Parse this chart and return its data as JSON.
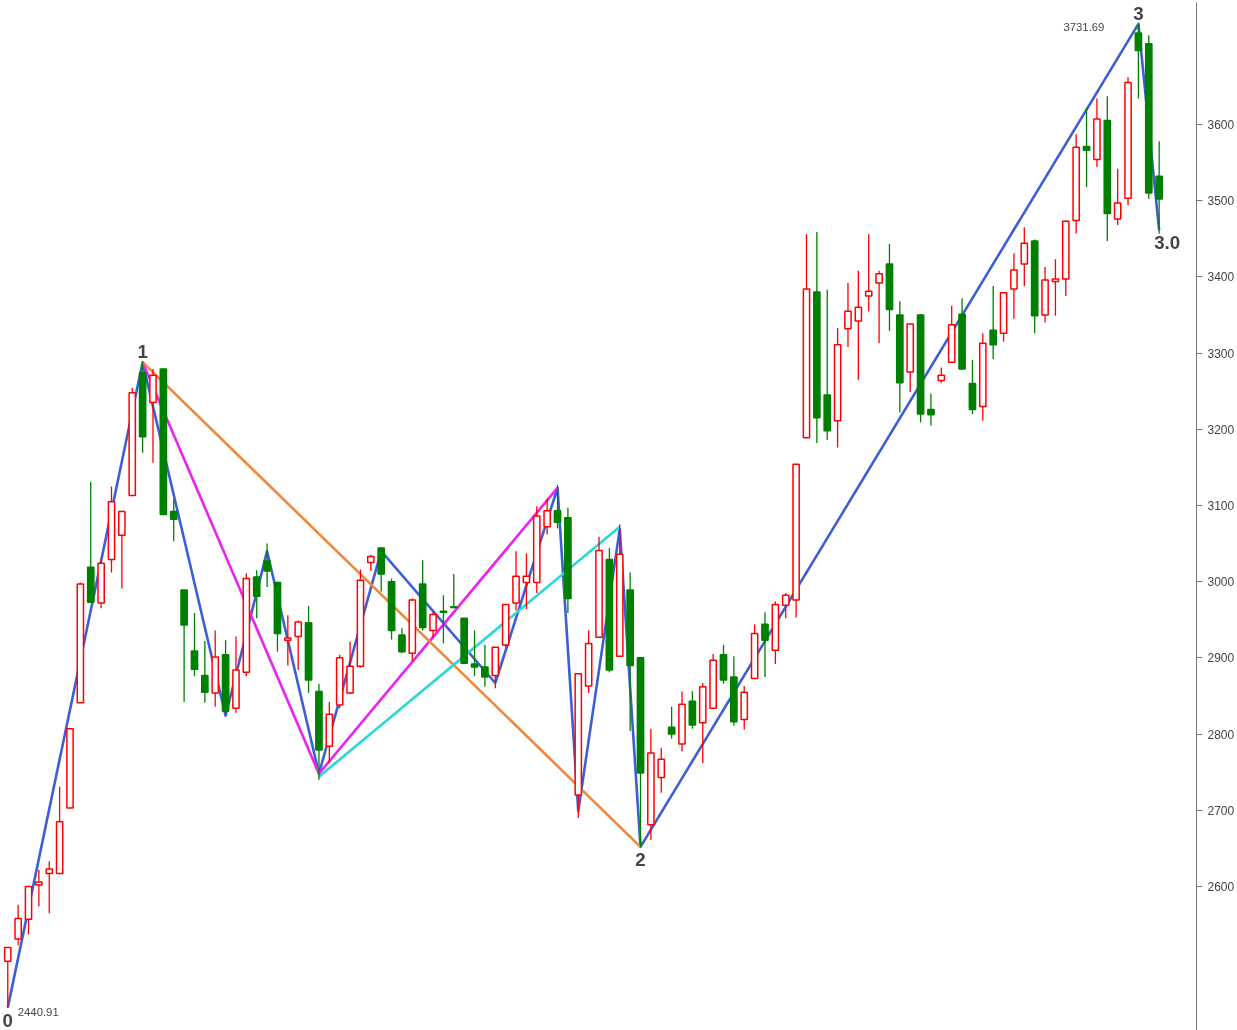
{
  "chart_data": {
    "type": "candlestick",
    "categories": [
      null,
      null,
      null,
      null,
      null,
      null,
      null,
      null,
      null,
      null,
      null,
      null,
      null,
      null,
      null,
      null,
      null,
      null,
      null,
      null,
      null,
      null,
      null,
      null,
      null,
      null,
      null,
      null,
      null,
      null,
      null,
      null,
      null,
      null,
      null,
      null,
      null,
      null,
      null,
      null,
      null,
      null,
      null,
      null,
      null,
      null,
      null,
      null,
      null,
      null,
      null,
      null,
      null,
      null,
      null,
      null,
      null,
      null,
      null,
      null,
      null,
      null,
      null,
      null,
      null,
      null,
      null,
      null,
      null,
      null,
      null,
      null,
      null,
      null,
      null,
      null,
      null,
      null,
      null,
      null,
      null,
      null,
      null,
      null,
      null,
      null,
      null,
      null,
      null,
      null,
      null,
      null,
      null,
      null,
      null,
      null,
      null,
      null,
      null,
      null,
      null,
      null,
      null,
      null,
      null,
      null,
      null,
      null,
      null,
      null,
      null,
      null
    ],
    "ohlc": [
      [
        2502,
        2520,
        2440.91,
        2520
      ],
      [
        2531,
        2576,
        2523,
        2558
      ],
      [
        2557,
        2600,
        2537,
        2600
      ],
      [
        2602,
        2622,
        2574,
        2606
      ],
      [
        2617,
        2633,
        2565,
        2623
      ],
      [
        2617,
        2731,
        2617,
        2685
      ],
      [
        2703,
        2807,
        2703,
        2807
      ],
      [
        2841,
        2999,
        2841,
        2997
      ],
      [
        3019,
        3131,
        2973,
        2973
      ],
      [
        2972,
        3028,
        2965,
        3024
      ],
      [
        3029,
        3125,
        3012,
        3105
      ],
      [
        3061,
        3093,
        2991,
        3092
      ],
      [
        3113,
        3254,
        3113,
        3248
      ],
      [
        3274,
        3288,
        3169,
        3190
      ],
      [
        3235,
        3279,
        3156,
        3271
      ],
      [
        3279,
        3280,
        3088,
        3088
      ],
      [
        3092,
        3108,
        3053,
        3082
      ],
      [
        2989,
        2989,
        2842,
        2943
      ],
      [
        2909,
        2959,
        2876,
        2885
      ],
      [
        2877,
        2922,
        2841,
        2855
      ],
      [
        2854,
        2936,
        2836,
        2901
      ],
      [
        2904,
        2923,
        2826,
        2830
      ],
      [
        2834,
        2928,
        2828,
        2884
      ],
      [
        2881,
        3011,
        2876,
        3004
      ],
      [
        3006,
        3015,
        2952,
        2981
      ],
      [
        3027,
        3050,
        2993,
        3014
      ],
      [
        2999,
        3000,
        2908,
        2932
      ],
      [
        2923,
        2956,
        2890,
        2926
      ],
      [
        2928,
        2949,
        2884,
        2947
      ],
      [
        2946,
        2968,
        2854,
        2871
      ],
      [
        2856,
        2866,
        2740,
        2779
      ],
      [
        2784,
        2842,
        2762,
        2826
      ],
      [
        2838,
        2904,
        2834,
        2900
      ],
      [
        2854,
        2921,
        2853,
        2889
      ],
      [
        2889,
        3016,
        2887,
        3002
      ],
      [
        3025,
        3035,
        3014,
        3033
      ],
      [
        3044,
        3045,
        2987,
        3010
      ],
      [
        3000,
        3004,
        2924,
        2936
      ],
      [
        2930,
        2939,
        2906,
        2908
      ],
      [
        2906,
        2978,
        2896,
        2976
      ],
      [
        2997,
        3028,
        2936,
        2940
      ],
      [
        2936,
        2961,
        2926,
        2957
      ],
      [
        2961,
        2982,
        2919,
        2960
      ],
      [
        2967,
        3010,
        2965,
        2966
      ],
      [
        2952,
        2952,
        2893,
        2893
      ],
      [
        2892,
        2936,
        2876,
        2888
      ],
      [
        2888,
        2917,
        2862,
        2875
      ],
      [
        2877,
        2914,
        2860,
        2914
      ],
      [
        2917,
        2970,
        2914,
        2970
      ],
      [
        2972,
        3040,
        2962,
        3007
      ],
      [
        2999,
        3037,
        2964,
        3007
      ],
      [
        2999,
        3099,
        2985,
        3086
      ],
      [
        3072,
        3109,
        3062,
        3093
      ],
      [
        3093,
        3127,
        3070,
        3078
      ],
      [
        3084,
        3097,
        2959,
        2978
      ],
      [
        2720,
        2879,
        2690,
        2879
      ],
      [
        2863,
        2936,
        2854,
        2919
      ],
      [
        2927,
        3059,
        2927,
        3041
      ],
      [
        3029,
        3044,
        2881,
        2884
      ],
      [
        2902,
        3075,
        2902,
        3036
      ],
      [
        2989,
        3012,
        2804,
        2890
      ],
      [
        2900,
        2900,
        2652,
        2749
      ],
      [
        2681,
        2807,
        2661,
        2775
      ],
      [
        2743,
        2782,
        2723,
        2767
      ],
      [
        2809,
        2836,
        2794,
        2800
      ],
      [
        2787,
        2856,
        2777,
        2839
      ],
      [
        2843,
        2856,
        2807,
        2812
      ],
      [
        2815,
        2867,
        2762,
        2862
      ],
      [
        2834,
        2905,
        2834,
        2897
      ],
      [
        2904,
        2917,
        2866,
        2871
      ],
      [
        2875,
        2902,
        2811,
        2816
      ],
      [
        2819,
        2863,
        2806,
        2855
      ],
      [
        2873,
        2944,
        2873,
        2932
      ],
      [
        2944,
        2960,
        2875,
        2923
      ],
      [
        2910,
        2974,
        2892,
        2970
      ],
      [
        2969,
        2985,
        2952,
        2982
      ],
      [
        2976,
        3154,
        2953,
        3154
      ],
      [
        3189,
        3456,
        3189,
        3384
      ],
      [
        3380,
        3459,
        3182,
        3215
      ],
      [
        3245,
        3383,
        3186,
        3198
      ],
      [
        3211,
        3333,
        3176,
        3311
      ],
      [
        3332,
        3392,
        3308,
        3355
      ],
      [
        3342,
        3408,
        3265,
        3360
      ],
      [
        3375,
        3456,
        3355,
        3381
      ],
      [
        3392,
        3408,
        3313,
        3404
      ],
      [
        3417,
        3443,
        3329,
        3357
      ],
      [
        3350,
        3368,
        3222,
        3261
      ],
      [
        3275,
        3338,
        3249,
        3338
      ],
      [
        3350,
        3351,
        3209,
        3220
      ],
      [
        3226,
        3247,
        3205,
        3219
      ],
      [
        3264,
        3281,
        3261,
        3271
      ],
      [
        3288,
        3362,
        3288,
        3337
      ],
      [
        3351,
        3372,
        3278,
        3279
      ],
      [
        3260,
        3291,
        3220,
        3226
      ],
      [
        3230,
        3326,
        3211,
        3313
      ],
      [
        3330,
        3388,
        3292,
        3311
      ],
      [
        3326,
        3379,
        3315,
        3379
      ],
      [
        3384,
        3431,
        3345,
        3409
      ],
      [
        3417,
        3465,
        3388,
        3444
      ],
      [
        3447,
        3449,
        3326,
        3349
      ],
      [
        3350,
        3413,
        3340,
        3396
      ],
      [
        3394,
        3423,
        3349,
        3397
      ],
      [
        3397,
        3474,
        3375,
        3473
      ],
      [
        3474,
        3587,
        3457,
        3570
      ],
      [
        3571,
        3622,
        3518,
        3566
      ],
      [
        3554,
        3634,
        3544,
        3607
      ],
      [
        3605,
        3637,
        3447,
        3483
      ],
      [
        3476,
        3542,
        3468,
        3497
      ],
      [
        3503,
        3662,
        3494,
        3655
      ],
      [
        3720,
        3731.69,
        3634,
        3697
      ],
      [
        3706,
        3717,
        3502,
        3510
      ],
      [
        3532,
        3578,
        3457,
        3502
      ]
    ],
    "colors": [
      "#ff0000",
      "#ff0000",
      "#ff0000",
      "#ff0000",
      "#ff0000",
      "#ff0000",
      "#ff0000",
      "#ff0000",
      "#008000",
      "#ff0000",
      "#ff0000",
      "#ff0000",
      "#ff0000",
      "#008000",
      "#ff0000",
      "#008000",
      "#008000",
      "#008000",
      "#008000",
      "#008000",
      "#ff0000",
      "#008000",
      "#ff0000",
      "#ff0000",
      "#008000",
      "#008000",
      "#008000",
      "#ff0000",
      "#ff0000",
      "#008000",
      "#008000",
      "#ff0000",
      "#ff0000",
      "#ff0000",
      "#ff0000",
      "#ff0000",
      "#008000",
      "#008000",
      "#008000",
      "#ff0000",
      "#008000",
      "#ff0000",
      "#008000",
      "#008000",
      "#008000",
      "#008000",
      "#008000",
      "#ff0000",
      "#ff0000",
      "#ff0000",
      "#ff0000",
      "#ff0000",
      "#ff0000",
      "#008000",
      "#008000",
      "#ff0000",
      "#ff0000",
      "#ff0000",
      "#008000",
      "#ff0000",
      "#008000",
      "#008000",
      "#ff0000",
      "#ff0000",
      "#008000",
      "#ff0000",
      "#008000",
      "#ff0000",
      "#ff0000",
      "#008000",
      "#008000",
      "#ff0000",
      "#ff0000",
      "#008000",
      "#ff0000",
      "#ff0000",
      "#ff0000",
      "#ff0000",
      "#008000",
      "#008000",
      "#ff0000",
      "#ff0000",
      "#ff0000",
      "#ff0000",
      "#ff0000",
      "#008000",
      "#008000",
      "#ff0000",
      "#008000",
      "#008000",
      "#ff0000",
      "#ff0000",
      "#008000",
      "#008000",
      "#ff0000",
      "#008000",
      "#ff0000",
      "#ff0000",
      "#ff0000",
      "#008000",
      "#ff0000",
      "#ff0000",
      "#ff0000",
      "#ff0000",
      "#008000",
      "#ff0000",
      "#008000",
      "#ff0000",
      "#ff0000",
      "#008000",
      "#008000",
      "#008000"
    ],
    "series": [
      {
        "type": "line",
        "color": "#3d5fd6",
        "values": [
          2441,
          null,
          null,
          null,
          null,
          null,
          null,
          null,
          null,
          null,
          null,
          null,
          null,
          3288,
          null,
          null,
          null,
          null,
          null,
          null,
          null,
          2824,
          null,
          null,
          null,
          3040,
          null,
          null,
          null,
          null,
          2748,
          null,
          null,
          null,
          null,
          null,
          3040,
          null,
          null,
          null,
          null,
          null,
          null,
          null,
          null,
          null,
          null,
          2867,
          null,
          null,
          null,
          null,
          null,
          3123,
          null,
          2699,
          null,
          null,
          null,
          3069,
          null,
          2652,
          null,
          null,
          null,
          null,
          null,
          null,
          null,
          null,
          null,
          null,
          null,
          null,
          null,
          null,
          null,
          null,
          null,
          null,
          null,
          null,
          null,
          null,
          null,
          null,
          null,
          null,
          null,
          null,
          null,
          null,
          null,
          null,
          null,
          null,
          null,
          null,
          null,
          null,
          null,
          null,
          null,
          null,
          null,
          null,
          null,
          null,
          null,
          3732,
          null,
          3461
        ]
      },
      {
        "type": "line",
        "color": "#ee22ee",
        "values": [
          null,
          null,
          null,
          null,
          null,
          null,
          null,
          null,
          null,
          null,
          null,
          null,
          null,
          3288,
          null,
          null,
          null,
          null,
          null,
          null,
          null,
          null,
          null,
          null,
          null,
          null,
          null,
          null,
          null,
          null,
          2748,
          null,
          null,
          null,
          null,
          null,
          null,
          null,
          null,
          null,
          null,
          null,
          null,
          null,
          null,
          null,
          null,
          null,
          null,
          null,
          null,
          null,
          null,
          3123,
          null,
          null,
          null,
          null,
          null,
          null,
          null,
          null,
          null,
          null,
          null,
          null,
          null,
          null,
          null,
          null,
          null,
          null,
          null,
          null,
          null,
          null,
          null,
          null,
          null,
          null,
          null,
          null,
          null,
          null,
          null,
          null,
          null,
          null,
          null,
          null,
          null,
          null,
          null,
          null,
          null,
          null,
          null,
          null,
          null,
          null,
          null,
          null,
          null,
          null,
          null,
          null,
          null,
          null,
          null,
          null,
          null,
          null
        ]
      },
      {
        "type": "line",
        "color": "#f0873a",
        "values": [
          null,
          null,
          null,
          null,
          null,
          null,
          null,
          null,
          null,
          null,
          null,
          null,
          null,
          3288,
          null,
          null,
          null,
          null,
          null,
          null,
          null,
          null,
          null,
          null,
          null,
          null,
          null,
          null,
          null,
          null,
          null,
          null,
          null,
          null,
          null,
          null,
          null,
          null,
          null,
          null,
          null,
          null,
          null,
          null,
          null,
          null,
          null,
          null,
          null,
          null,
          null,
          null,
          null,
          null,
          null,
          null,
          null,
          null,
          null,
          null,
          null,
          2652,
          null,
          null,
          null,
          null,
          null,
          null,
          null,
          null,
          null,
          null,
          null,
          null,
          null,
          null,
          null,
          null,
          null,
          null,
          null,
          null,
          null,
          null,
          null,
          null,
          null,
          null,
          null,
          null,
          null,
          null,
          null,
          null,
          null,
          null,
          null,
          null,
          null,
          null,
          null,
          null,
          null,
          null,
          null,
          null,
          null,
          null,
          null,
          null,
          null,
          null
        ]
      },
      {
        "type": "line",
        "color": "#2ad8d8",
        "values": [
          null,
          null,
          null,
          null,
          null,
          null,
          null,
          null,
          null,
          null,
          null,
          null,
          null,
          null,
          null,
          null,
          null,
          null,
          null,
          null,
          null,
          null,
          null,
          null,
          null,
          null,
          null,
          null,
          null,
          null,
          2744,
          null,
          null,
          null,
          null,
          null,
          null,
          null,
          null,
          null,
          null,
          null,
          null,
          null,
          null,
          null,
          null,
          null,
          null,
          null,
          null,
          null,
          null,
          null,
          null,
          null,
          null,
          null,
          null,
          3072,
          null,
          null,
          null,
          null,
          null,
          null,
          null,
          null,
          null,
          null,
          null,
          null,
          null,
          null,
          null,
          null,
          null,
          null,
          null,
          null,
          null,
          null,
          null,
          null,
          null,
          null,
          null,
          null,
          null,
          null,
          null,
          null,
          null,
          null,
          null,
          null,
          null,
          null,
          null,
          null,
          null,
          null,
          null,
          null,
          null,
          null,
          null,
          null,
          null,
          null,
          null,
          null
        ]
      }
    ],
    "ylim": [
      2411,
      3760
    ],
    "yticks": [
      2600,
      2700,
      2800,
      2900,
      3000,
      3100,
      3200,
      3300,
      3400,
      3500,
      3600
    ],
    "annotations": [
      "3.0",
      {
        "text": "0",
        "y": 2441
      },
      "2440.91",
      {
        "text": "1",
        "y": 3288
      },
      {
        "text": "2",
        "y": 2652
      },
      {
        "text": "3",
        "y": 3732
      },
      "3731.69"
    ]
  }
}
